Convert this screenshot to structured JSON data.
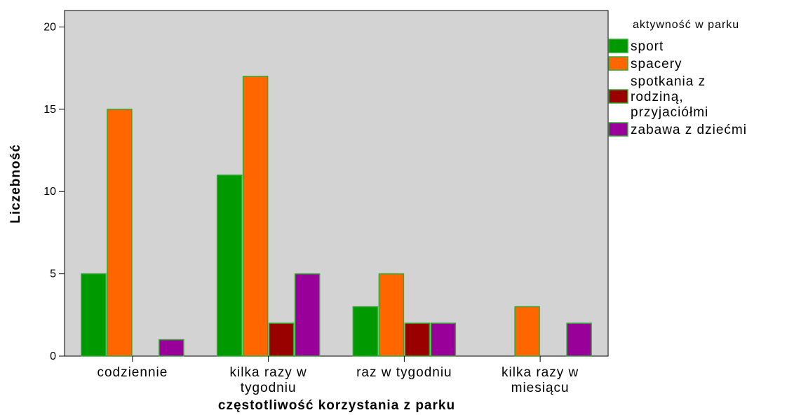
{
  "chart_data": {
    "type": "bar",
    "title": "",
    "xlabel": "częstotliwość korzystania z parku",
    "ylabel": "Liczebność",
    "ylim": [
      0,
      21
    ],
    "yticks": [
      0,
      5,
      10,
      15,
      20
    ],
    "grid": false,
    "legend_title": "aktywność w parku",
    "legend_position": "right",
    "categories": [
      [
        "codziennie"
      ],
      [
        "kilka razy w",
        "tygodniu"
      ],
      [
        "raz w tygodniu"
      ],
      [
        "kilka razy w",
        "miesiącu"
      ]
    ],
    "series": [
      {
        "name": "sport",
        "legend_lines": [
          "sport"
        ],
        "color": "#009900",
        "values": [
          5,
          11,
          3,
          0
        ]
      },
      {
        "name": "spacery",
        "legend_lines": [
          "spacery"
        ],
        "color": "#ff6600",
        "values": [
          15,
          17,
          5,
          3
        ]
      },
      {
        "name": "spotkania z rodziną, przyjaciółmi",
        "legend_lines": [
          "spotkania z",
          "rodziną,",
          "przyjaciółmi"
        ],
        "color": "#990000",
        "values": [
          0,
          2,
          2,
          0
        ]
      },
      {
        "name": "zabawa z dziećmi",
        "legend_lines": [
          "zabawa z dziećmi"
        ],
        "color": "#990099",
        "values": [
          1,
          5,
          2,
          2
        ]
      }
    ],
    "colors": {
      "plot_background": "#d3d3d3",
      "bar_outline": "#33aa33"
    }
  }
}
